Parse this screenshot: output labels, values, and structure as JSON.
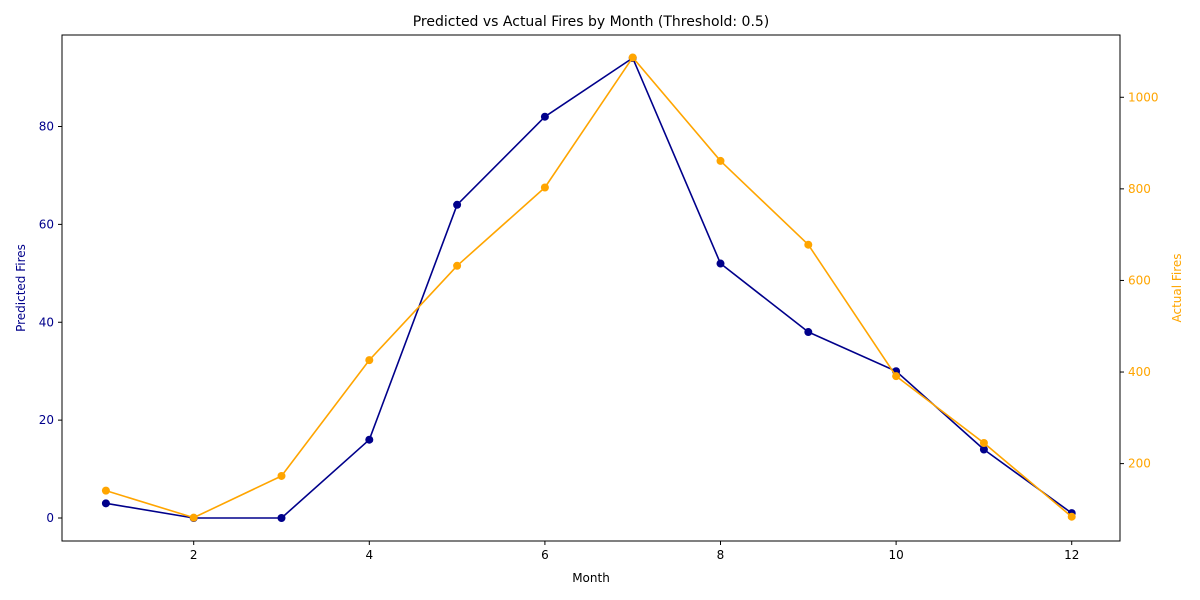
{
  "chart_data": {
    "type": "line",
    "title": "Predicted vs Actual Fires by Month (Threshold: 0.5)",
    "xlabel": "Month",
    "x": [
      1,
      2,
      3,
      4,
      5,
      6,
      7,
      8,
      9,
      10,
      11,
      12
    ],
    "xlim": [
      0.5,
      12.55
    ],
    "xticks": [
      2,
      4,
      6,
      8,
      10,
      12
    ],
    "grid": false,
    "left_axis": {
      "label": "Predicted Fires",
      "color": "#00008b",
      "ylim": [
        -4.7,
        98.7
      ],
      "ticks": [
        0,
        20,
        40,
        60,
        80
      ]
    },
    "right_axis": {
      "label": "Actual Fires",
      "color": "#ffa500",
      "ylim": [
        31,
        1136
      ],
      "ticks": [
        200,
        400,
        600,
        800,
        1000
      ]
    },
    "series": [
      {
        "name": "Predicted Fires",
        "axis": "left",
        "color": "#00008b",
        "values": [
          3,
          0,
          0,
          16,
          64,
          82,
          94,
          52,
          38,
          30,
          14,
          1
        ]
      },
      {
        "name": "Actual Fires",
        "axis": "right",
        "color": "#ffa500",
        "values": [
          141,
          82,
          173,
          426,
          632,
          803,
          1087,
          861,
          678,
          391,
          245,
          84
        ]
      }
    ]
  }
}
